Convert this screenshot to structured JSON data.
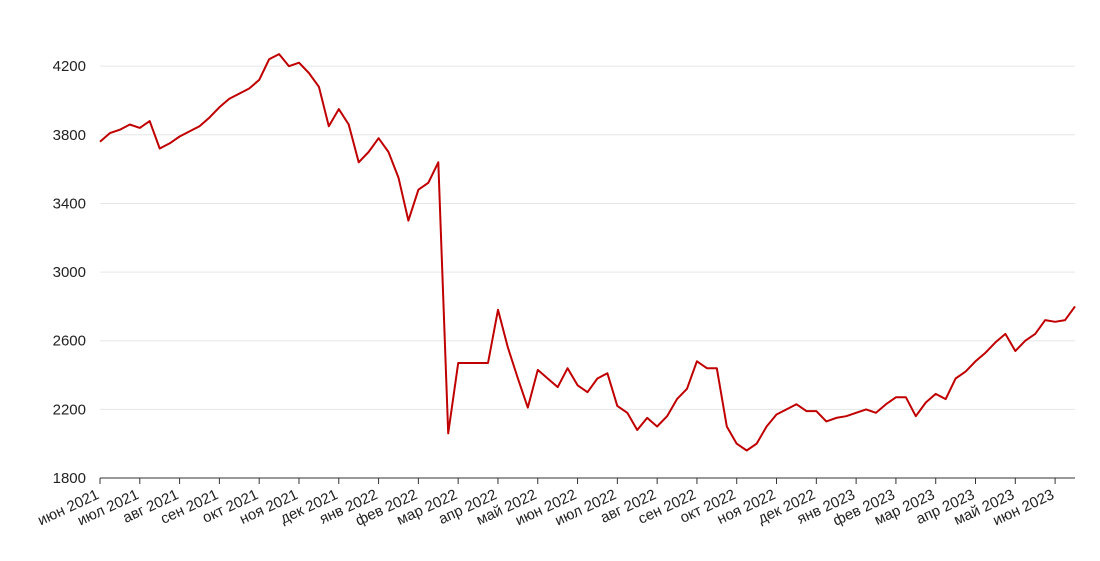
{
  "chart_data": {
    "type": "line",
    "categories": [
      "июн 2021",
      null,
      null,
      null,
      "июл 2021",
      null,
      null,
      null,
      "авг 2021",
      null,
      null,
      null,
      "сен 2021",
      null,
      null,
      null,
      "окт 2021",
      null,
      null,
      null,
      "ноя 2021",
      null,
      null,
      null,
      "дек 2021",
      null,
      null,
      null,
      "янв 2022",
      null,
      null,
      null,
      "фев 2022",
      null,
      null,
      null,
      "мар 2022",
      null,
      null,
      null,
      "апр 2022",
      null,
      null,
      null,
      "май 2022",
      null,
      null,
      null,
      "июн 2022",
      null,
      null,
      null,
      "июл 2022",
      null,
      null,
      null,
      "авг 2022",
      null,
      null,
      null,
      "сен 2022",
      null,
      null,
      null,
      "окт 2022",
      null,
      null,
      null,
      "ноя 2022",
      null,
      null,
      null,
      "дек 2022",
      null,
      null,
      null,
      "янв 2023",
      null,
      null,
      null,
      "фев 2023",
      null,
      null,
      null,
      "мар 2023",
      null,
      null,
      null,
      "апр 2023",
      null,
      null,
      null,
      "май 2023",
      null,
      null,
      null,
      "июн 2023",
      null,
      null
    ],
    "series": [
      {
        "color": "#c00000",
        "values": [
          3760,
          3810,
          3830,
          3860,
          3840,
          3880,
          3720,
          3750,
          3790,
          3820,
          3850,
          3900,
          3960,
          4010,
          4040,
          4070,
          4120,
          4240,
          4270,
          4200,
          4220,
          4160,
          4080,
          3850,
          3950,
          3860,
          3640,
          3700,
          3780,
          3700,
          3550,
          3300,
          3480,
          3520,
          3640,
          2060,
          2470,
          2470,
          2470,
          2470,
          2780,
          2560,
          2380,
          2210,
          2430,
          2380,
          2330,
          2440,
          2340,
          2300,
          2380,
          2410,
          2220,
          2180,
          2080,
          2150,
          2100,
          2160,
          2260,
          2320,
          2480,
          2440,
          2440,
          2100,
          2000,
          1960,
          2000,
          2100,
          2170,
          2200,
          2230,
          2190,
          2190,
          2130,
          2150,
          2160,
          2180,
          2200,
          2180,
          2230,
          2270,
          2270,
          2160,
          2240,
          2290,
          2260,
          2380,
          2420,
          2480,
          2530,
          2590,
          2640,
          2540,
          2600,
          2640,
          2720,
          2710,
          2720,
          2800
        ]
      }
    ],
    "ylim": [
      1800,
      4300
    ],
    "yticks": [
      1800,
      2200,
      2600,
      3000,
      3400,
      3800,
      4200
    ],
    "grid": true
  }
}
